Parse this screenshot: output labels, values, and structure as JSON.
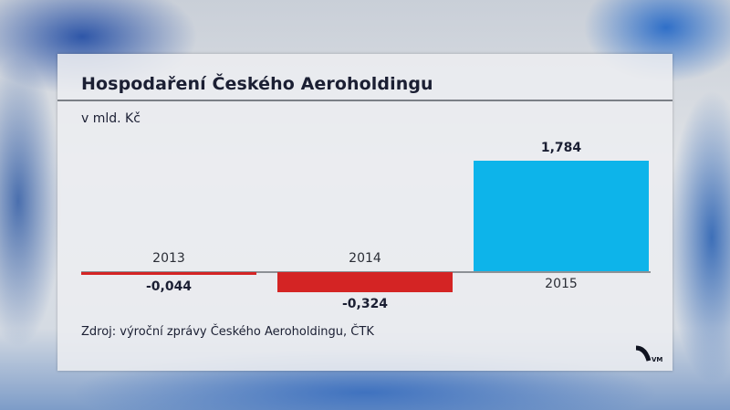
{
  "chart_data": {
    "type": "bar",
    "title": "Hospodaření Českého Aeroholdingu",
    "subtitle": "v mld. Kč",
    "xlabel": "",
    "ylabel": "v mld. Kč",
    "categories": [
      "2013",
      "2014",
      "2015"
    ],
    "values": [
      -0.044,
      -0.324,
      1.784
    ],
    "value_labels": [
      "-0,044",
      "-0,324",
      "1,784"
    ],
    "colors": [
      "#d42424",
      "#d42424",
      "#0db4ea"
    ],
    "grid": false,
    "legend": null,
    "source": "Zdroj: výroční zprávy Českého Aeroholdingu, ČTK"
  },
  "header": {
    "title": "Hospodaření Českého Aeroholdingu",
    "unit": "v mld. Kč"
  },
  "bars": [
    {
      "year": "2013",
      "label": "-0,044"
    },
    {
      "year": "2014",
      "label": "-0,324"
    },
    {
      "year": "2015",
      "label": "1,784"
    }
  ],
  "footer": {
    "source": "Zdroj: výroční zprávy Českého Aeroholdingu, ČTK",
    "logo_text": "VM"
  },
  "colors": {
    "negative": "#d42424",
    "positive": "#0db4ea",
    "text": "#1b1f33"
  }
}
